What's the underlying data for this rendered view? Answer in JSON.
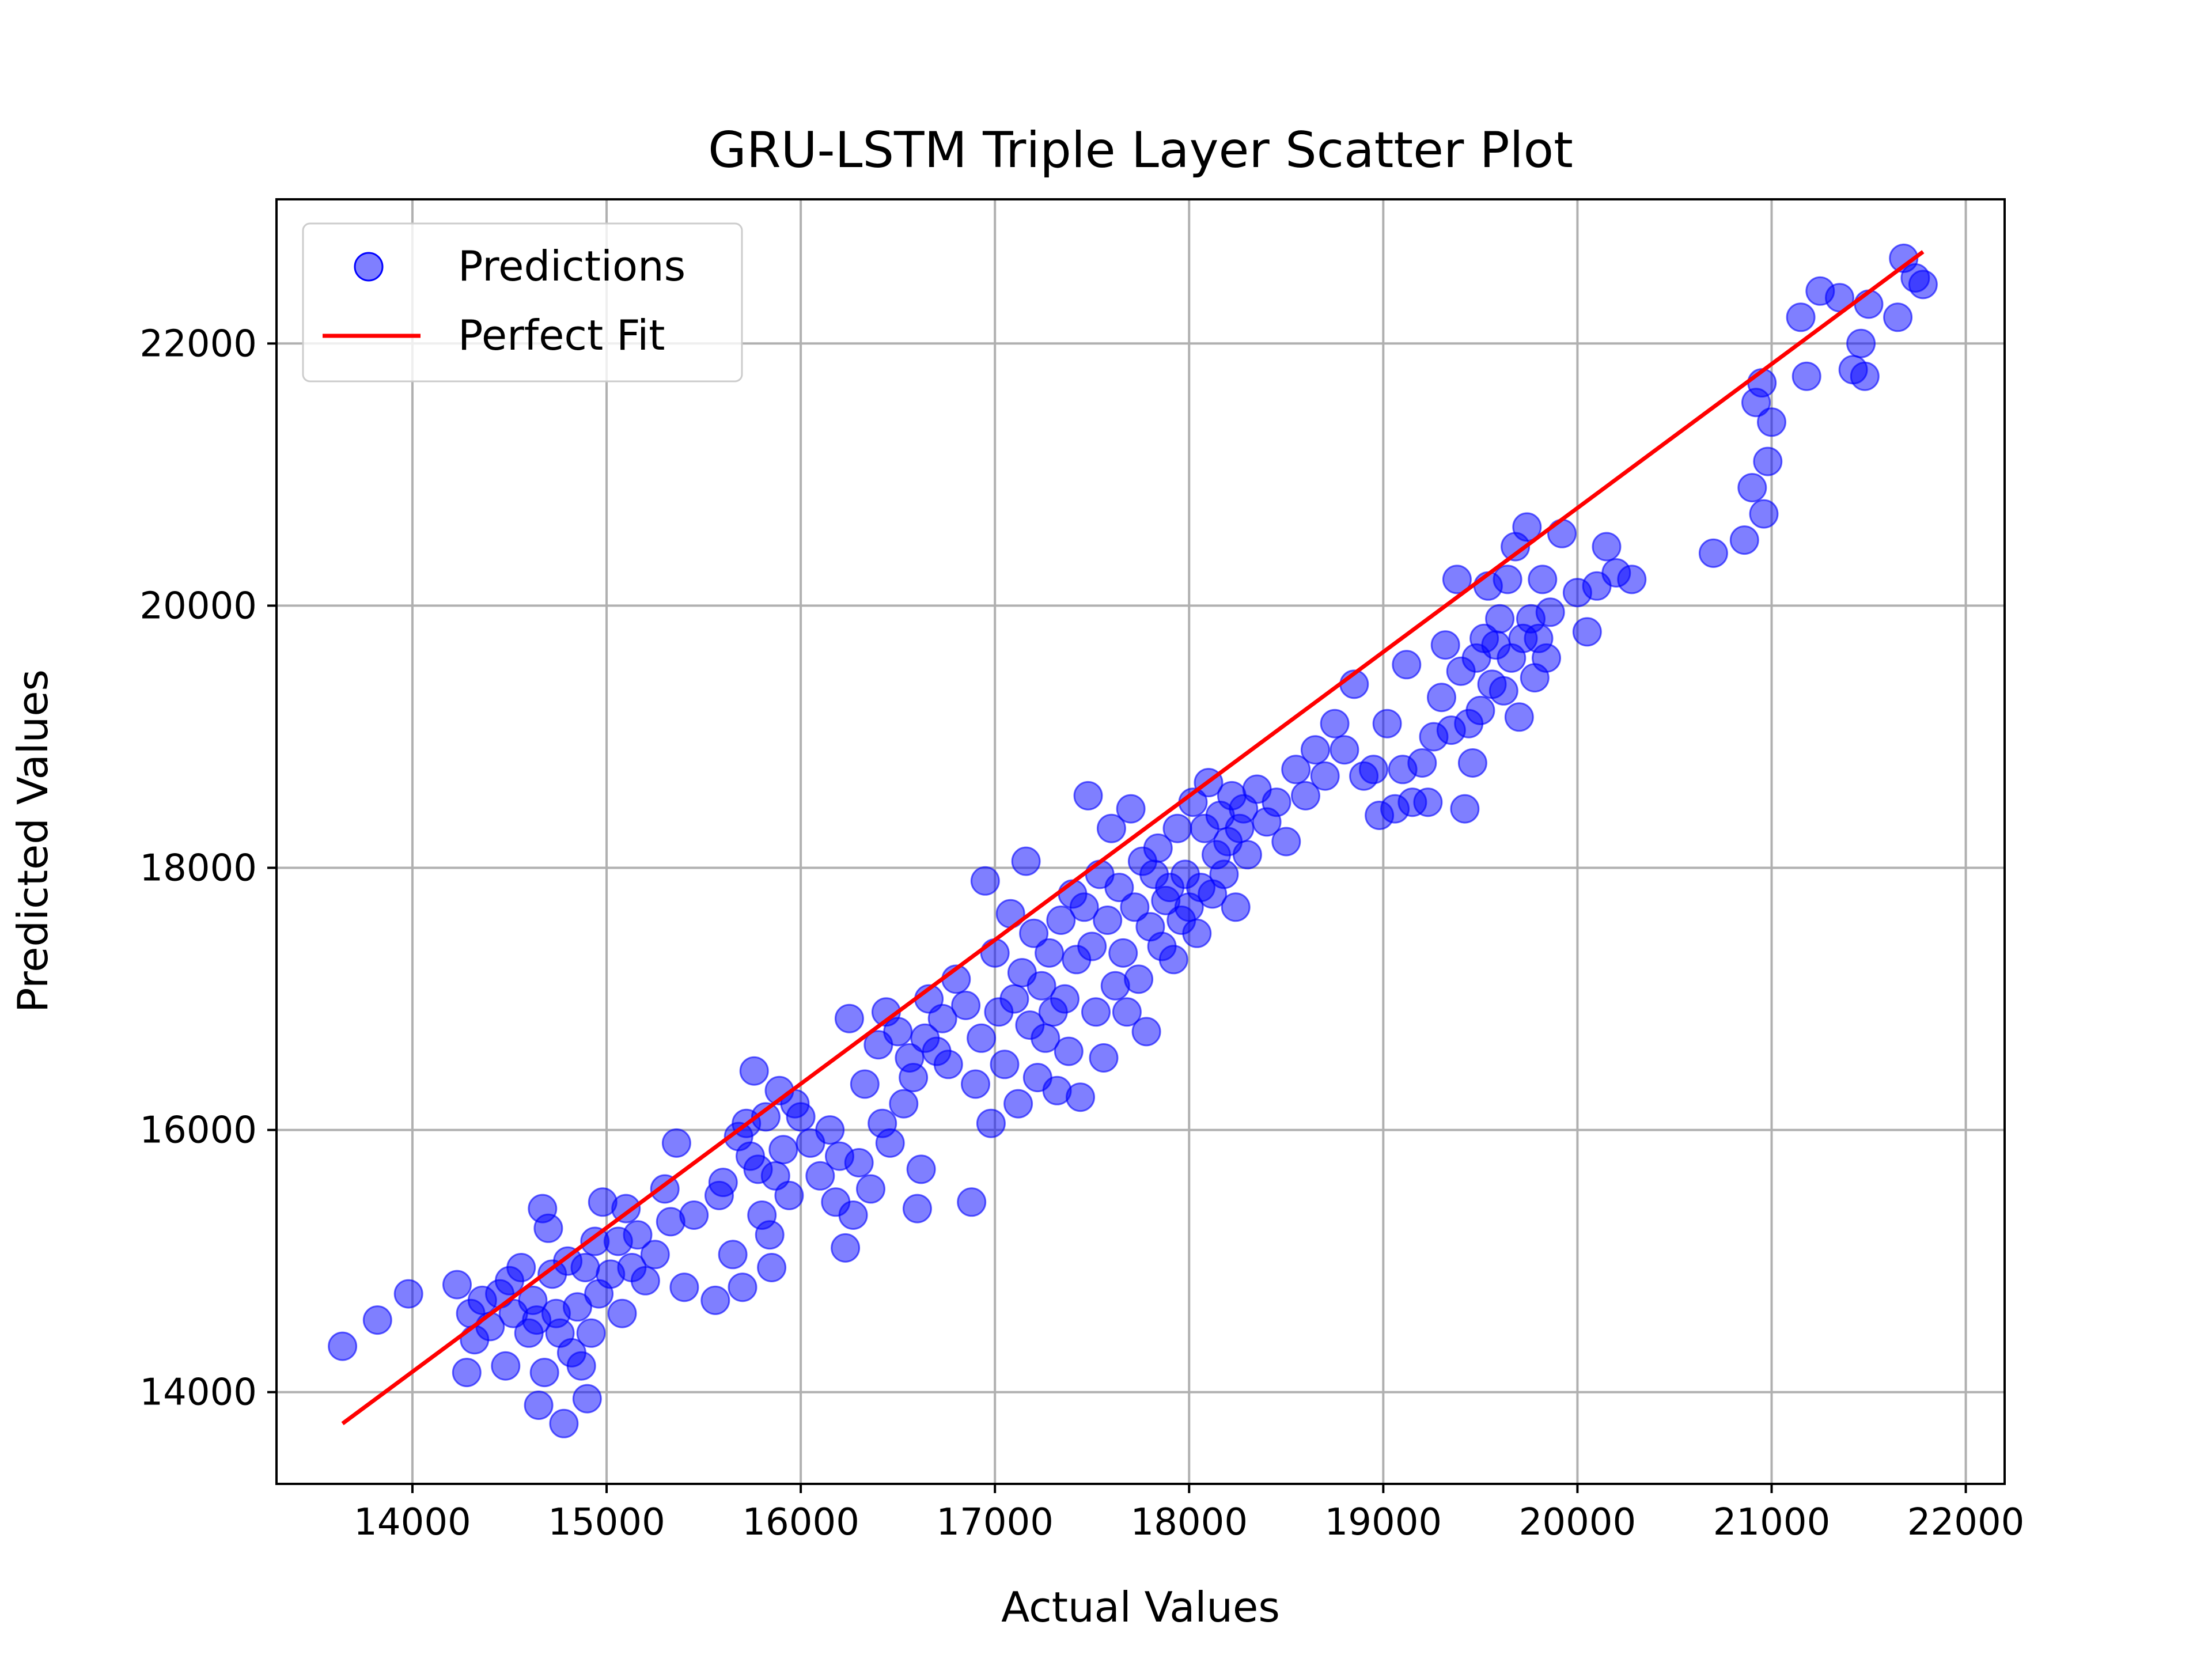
{
  "chart_data": {
    "type": "scatter",
    "title": "GRU-LSTM Triple Layer Scatter Plot",
    "xlabel": "Actual Values",
    "ylabel": "Predicted Values",
    "xlim": [
      13300,
      22200
    ],
    "ylim": [
      13300,
      23100
    ],
    "xticks": [
      "14000",
      "15000",
      "16000",
      "17000",
      "18000",
      "19000",
      "20000",
      "21000",
      "22000"
    ],
    "yticks": [
      "14000",
      "16000",
      "18000",
      "20000",
      "22000"
    ],
    "grid": true,
    "legend_position": "top-left",
    "legend": {
      "predictions": "Predictions",
      "fit": "Perfect Fit"
    },
    "colors": {
      "points": "#0000ff",
      "fit": "#ff0000",
      "grid": "#b0b0b0"
    },
    "series": [
      {
        "name": "Predictions",
        "kind": "scatter",
        "points": [
          [
            13640,
            14350
          ],
          [
            13820,
            14550
          ],
          [
            13980,
            14750
          ],
          [
            14230,
            14820
          ],
          [
            14280,
            14150
          ],
          [
            14300,
            14600
          ],
          [
            14320,
            14400
          ],
          [
            14360,
            14700
          ],
          [
            14400,
            14500
          ],
          [
            14450,
            14750
          ],
          [
            14480,
            14200
          ],
          [
            14500,
            14850
          ],
          [
            14520,
            14600
          ],
          [
            14560,
            14950
          ],
          [
            14600,
            14450
          ],
          [
            14620,
            14700
          ],
          [
            14640,
            14550
          ],
          [
            14650,
            13900
          ],
          [
            14670,
            15400
          ],
          [
            14680,
            14150
          ],
          [
            14700,
            15250
          ],
          [
            14720,
            14900
          ],
          [
            14740,
            14600
          ],
          [
            14760,
            14450
          ],
          [
            14780,
            13760
          ],
          [
            14800,
            15000
          ],
          [
            14820,
            14300
          ],
          [
            14850,
            14650
          ],
          [
            14870,
            14200
          ],
          [
            14890,
            14950
          ],
          [
            14900,
            13950
          ],
          [
            14920,
            14450
          ],
          [
            14940,
            15150
          ],
          [
            14960,
            14750
          ],
          [
            14980,
            15450
          ],
          [
            15020,
            14900
          ],
          [
            15060,
            15150
          ],
          [
            15080,
            14600
          ],
          [
            15100,
            15400
          ],
          [
            15130,
            14950
          ],
          [
            15160,
            15200
          ],
          [
            15200,
            14850
          ],
          [
            15250,
            15050
          ],
          [
            15300,
            15550
          ],
          [
            15330,
            15300
          ],
          [
            15360,
            15900
          ],
          [
            15400,
            14800
          ],
          [
            15450,
            15350
          ],
          [
            15560,
            14700
          ],
          [
            15580,
            15500
          ],
          [
            15600,
            15600
          ],
          [
            15650,
            15050
          ],
          [
            15680,
            15950
          ],
          [
            15700,
            14800
          ],
          [
            15720,
            16050
          ],
          [
            15740,
            15800
          ],
          [
            15760,
            16450
          ],
          [
            15780,
            15700
          ],
          [
            15800,
            15350
          ],
          [
            15820,
            16100
          ],
          [
            15840,
            15200
          ],
          [
            15850,
            14950
          ],
          [
            15870,
            15650
          ],
          [
            15890,
            16300
          ],
          [
            15910,
            15850
          ],
          [
            15940,
            15500
          ],
          [
            15970,
            16200
          ],
          [
            16000,
            16100
          ],
          [
            16050,
            15900
          ],
          [
            16100,
            15650
          ],
          [
            16150,
            16000
          ],
          [
            16180,
            15450
          ],
          [
            16200,
            15800
          ],
          [
            16230,
            15100
          ],
          [
            16250,
            16850
          ],
          [
            16270,
            15350
          ],
          [
            16300,
            15750
          ],
          [
            16330,
            16350
          ],
          [
            16360,
            15550
          ],
          [
            16400,
            16650
          ],
          [
            16420,
            16050
          ],
          [
            16440,
            16900
          ],
          [
            16460,
            15900
          ],
          [
            16500,
            16750
          ],
          [
            16530,
            16200
          ],
          [
            16560,
            16550
          ],
          [
            16580,
            16400
          ],
          [
            16600,
            15400
          ],
          [
            16620,
            15700
          ],
          [
            16640,
            16700
          ],
          [
            16660,
            17000
          ],
          [
            16700,
            16600
          ],
          [
            16730,
            16850
          ],
          [
            16760,
            16500
          ],
          [
            16800,
            17150
          ],
          [
            16850,
            16950
          ],
          [
            16880,
            15450
          ],
          [
            16900,
            16350
          ],
          [
            16930,
            16700
          ],
          [
            16950,
            17900
          ],
          [
            16980,
            16050
          ],
          [
            17000,
            17350
          ],
          [
            17020,
            16900
          ],
          [
            17050,
            16500
          ],
          [
            17080,
            17650
          ],
          [
            17100,
            17000
          ],
          [
            17120,
            16200
          ],
          [
            17140,
            17200
          ],
          [
            17160,
            18050
          ],
          [
            17180,
            16800
          ],
          [
            17200,
            17500
          ],
          [
            17220,
            16400
          ],
          [
            17240,
            17100
          ],
          [
            17260,
            16700
          ],
          [
            17280,
            17350
          ],
          [
            17300,
            16900
          ],
          [
            17320,
            16300
          ],
          [
            17340,
            17600
          ],
          [
            17360,
            17000
          ],
          [
            17380,
            16600
          ],
          [
            17400,
            17800
          ],
          [
            17420,
            17300
          ],
          [
            17440,
            16250
          ],
          [
            17460,
            17700
          ],
          [
            17480,
            18550
          ],
          [
            17500,
            17400
          ],
          [
            17520,
            16900
          ],
          [
            17540,
            17950
          ],
          [
            17560,
            16550
          ],
          [
            17580,
            17600
          ],
          [
            17600,
            18300
          ],
          [
            17620,
            17100
          ],
          [
            17640,
            17850
          ],
          [
            17660,
            17350
          ],
          [
            17680,
            16900
          ],
          [
            17700,
            18450
          ],
          [
            17720,
            17700
          ],
          [
            17740,
            17150
          ],
          [
            17760,
            18050
          ],
          [
            17780,
            16750
          ],
          [
            17800,
            17550
          ],
          [
            17820,
            17950
          ],
          [
            17840,
            18150
          ],
          [
            17860,
            17400
          ],
          [
            17880,
            17750
          ],
          [
            17900,
            17850
          ],
          [
            17920,
            17300
          ],
          [
            17940,
            18300
          ],
          [
            17960,
            17600
          ],
          [
            17980,
            17950
          ],
          [
            18000,
            17700
          ],
          [
            18020,
            18500
          ],
          [
            18040,
            17500
          ],
          [
            18060,
            17850
          ],
          [
            18080,
            18300
          ],
          [
            18100,
            18650
          ],
          [
            18120,
            17800
          ],
          [
            18140,
            18100
          ],
          [
            18160,
            18400
          ],
          [
            18180,
            17950
          ],
          [
            18200,
            18200
          ],
          [
            18220,
            18550
          ],
          [
            18240,
            17700
          ],
          [
            18260,
            18300
          ],
          [
            18280,
            18450
          ],
          [
            18300,
            18100
          ],
          [
            18350,
            18600
          ],
          [
            18400,
            18350
          ],
          [
            18450,
            18500
          ],
          [
            18500,
            18200
          ],
          [
            18550,
            18750
          ],
          [
            18600,
            18550
          ],
          [
            18650,
            18900
          ],
          [
            18700,
            18700
          ],
          [
            18750,
            19100
          ],
          [
            18800,
            18900
          ],
          [
            18850,
            19400
          ],
          [
            18900,
            18700
          ],
          [
            18950,
            18750
          ],
          [
            18980,
            18400
          ],
          [
            19020,
            19100
          ],
          [
            19060,
            18450
          ],
          [
            19100,
            18750
          ],
          [
            19120,
            19550
          ],
          [
            19150,
            18500
          ],
          [
            19200,
            18800
          ],
          [
            19230,
            18500
          ],
          [
            19260,
            19000
          ],
          [
            19300,
            19300
          ],
          [
            19320,
            19700
          ],
          [
            19350,
            19050
          ],
          [
            19380,
            20200
          ],
          [
            19400,
            19500
          ],
          [
            19420,
            18450
          ],
          [
            19440,
            19100
          ],
          [
            19460,
            18800
          ],
          [
            19480,
            19600
          ],
          [
            19500,
            19200
          ],
          [
            19520,
            19750
          ],
          [
            19540,
            20150
          ],
          [
            19560,
            19400
          ],
          [
            19580,
            19700
          ],
          [
            19600,
            19900
          ],
          [
            19620,
            19350
          ],
          [
            19640,
            20200
          ],
          [
            19660,
            19600
          ],
          [
            19680,
            20450
          ],
          [
            19700,
            19150
          ],
          [
            19720,
            19750
          ],
          [
            19740,
            20600
          ],
          [
            19760,
            19900
          ],
          [
            19780,
            19450
          ],
          [
            19800,
            19750
          ],
          [
            19820,
            20200
          ],
          [
            19840,
            19600
          ],
          [
            19860,
            19950
          ],
          [
            19920,
            20550
          ],
          [
            20000,
            20100
          ],
          [
            20050,
            19800
          ],
          [
            20100,
            20150
          ],
          [
            20150,
            20450
          ],
          [
            20200,
            20250
          ],
          [
            20280,
            20200
          ],
          [
            20700,
            20400
          ],
          [
            20860,
            20500
          ],
          [
            20900,
            20900
          ],
          [
            20920,
            21550
          ],
          [
            20950,
            21700
          ],
          [
            20980,
            21100
          ],
          [
            21000,
            21400
          ],
          [
            20960,
            20700
          ],
          [
            21150,
            22200
          ],
          [
            21180,
            21750
          ],
          [
            21250,
            22400
          ],
          [
            21350,
            22350
          ],
          [
            21420,
            21800
          ],
          [
            21460,
            22000
          ],
          [
            21480,
            21750
          ],
          [
            21500,
            22300
          ],
          [
            21650,
            22200
          ],
          [
            21680,
            22650
          ],
          [
            21740,
            22500
          ],
          [
            21780,
            22450
          ]
        ]
      },
      {
        "name": "Perfect Fit",
        "kind": "line",
        "x": [
          13640,
          21780
        ],
        "y": [
          13760,
          22700
        ]
      }
    ]
  }
}
